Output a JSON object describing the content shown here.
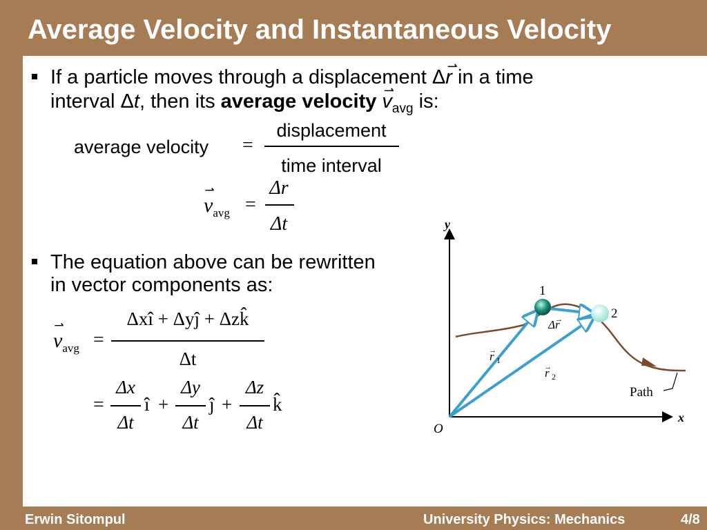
{
  "title": "Average Velocity and Instantaneous Velocity",
  "bullet1": {
    "line1_a": "If a particle moves through a displacement ",
    "line1_delta": "Δ",
    "line1_var": "r",
    "line1_b": " in a time",
    "line2_a": "interval Δ",
    "line2_var_t": "t",
    "line2_b": ", then its ",
    "line2_bold": "average velocity",
    "line2_v": "v",
    "line2_sub": "avg",
    "line2_c": " is:"
  },
  "eq1": {
    "lhs": "average velocity",
    "equals": "=",
    "numerator": "displacement",
    "denominator": "time interval"
  },
  "eq2": {
    "v": "v",
    "sub": "avg",
    "equals": "=",
    "numerator": "Δr",
    "denominator": "Δt"
  },
  "bullet2": {
    "line1": "The equation above can be rewritten",
    "line2": "in vector components as:"
  },
  "eq3": {
    "v": "v",
    "sub": "avg",
    "equals": "=",
    "numerator": "Δxî + Δyĵ + Δzk̂",
    "denominator": "Δt"
  },
  "eq4": {
    "equals": "=",
    "n1": "Δx",
    "d1": "Δt",
    "u1": "î",
    "plus1": "+",
    "n2": "Δy",
    "d2": "Δt",
    "u2": "ĵ",
    "plus2": "+",
    "n3": "Δz",
    "d3": "Δt",
    "u3": "k̂"
  },
  "figure": {
    "axis_y": "y",
    "axis_x": "x",
    "origin": "O",
    "point1": "1",
    "point2": "2",
    "r1": "r",
    "r1_sub": "1",
    "r2": "r",
    "r2_sub": "2",
    "delta_r": "Δr",
    "path_label": "Path",
    "colors": {
      "path": "#7b4a2a",
      "vector": "#3a9fd1",
      "particle1": "#1d8f79",
      "particle2": "#9ee3d6"
    }
  },
  "footer": {
    "author": "Erwin Sitompul",
    "course": "University Physics: Mechanics",
    "page": "4/8"
  }
}
